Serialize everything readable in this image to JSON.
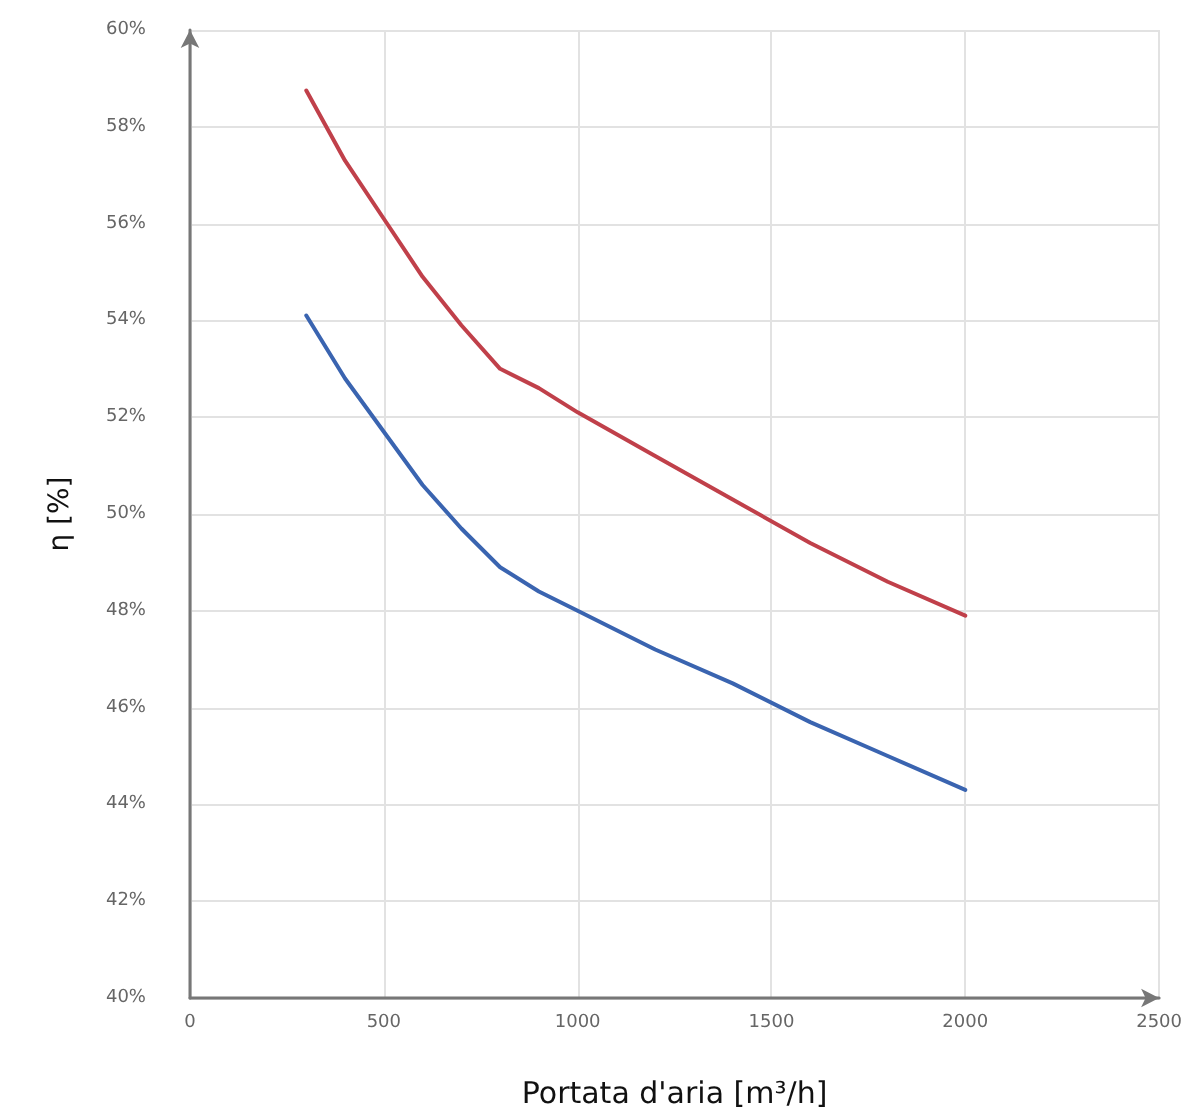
{
  "chart_data": {
    "type": "line",
    "xlabel": "Portata d'aria [m³/h]",
    "ylabel": "η [%]",
    "series": [
      {
        "color": "#c0404a",
        "x": [
          300,
          400,
          500,
          600,
          700,
          800,
          900,
          1000,
          1200,
          1400,
          1600,
          1800,
          2000
        ],
        "values": [
          58.75,
          57.3,
          56.1,
          54.9,
          53.9,
          53.0,
          52.6,
          52.1,
          51.2,
          50.3,
          49.4,
          48.6,
          47.9
        ]
      },
      {
        "color": "#3a64b0",
        "x": [
          300,
          400,
          500,
          600,
          700,
          800,
          900,
          1000,
          1200,
          1400,
          1600,
          1800,
          2000
        ],
        "values": [
          54.1,
          52.8,
          51.7,
          50.6,
          49.7,
          48.9,
          48.4,
          48.0,
          47.2,
          46.5,
          45.7,
          45.0,
          44.3
        ]
      }
    ],
    "xlim": [
      0,
      2500
    ],
    "xticks": [
      0,
      500,
      1000,
      1500,
      2000,
      2500
    ],
    "ylim": [
      40,
      60
    ],
    "yticks": [
      {
        "value": 40,
        "label": "40%"
      },
      {
        "value": 42,
        "label": "42%"
      },
      {
        "value": 44,
        "label": "44%"
      },
      {
        "value": 46,
        "label": "46%"
      },
      {
        "value": 48,
        "label": "48%"
      },
      {
        "value": 50,
        "label": "50%"
      },
      {
        "value": 52,
        "label": "52%"
      },
      {
        "value": 54,
        "label": "54%"
      },
      {
        "value": 56,
        "label": "56%"
      },
      {
        "value": 58,
        "label": "58%"
      },
      {
        "value": 60,
        "label": "60%"
      }
    ],
    "grid": true,
    "marker": "none",
    "line_style": "solid"
  }
}
